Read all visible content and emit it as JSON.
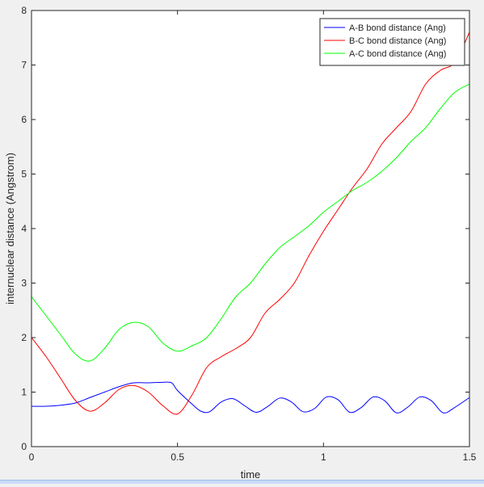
{
  "chart_data": {
    "type": "line",
    "title": "",
    "xlabel": "time",
    "ylabel": "internuclear distance (Angstrom)",
    "xlim": [
      0,
      1.5
    ],
    "ylim": [
      0,
      8
    ],
    "xticks": [
      0,
      0.5,
      1,
      1.5
    ],
    "xtick_labels": [
      "0",
      "0.5",
      "1",
      "1.5"
    ],
    "yticks": [
      0,
      1,
      2,
      3,
      4,
      5,
      6,
      7,
      8
    ],
    "ytick_labels": [
      "0",
      "1",
      "2",
      "3",
      "4",
      "5",
      "6",
      "7",
      "8"
    ],
    "grid": false,
    "legend_position": "top-right",
    "series": [
      {
        "name": "A-B bond distance (Ang)",
        "color": "#0000ff",
        "x": [
          0,
          0.05,
          0.1,
          0.15,
          0.2,
          0.25,
          0.3,
          0.35,
          0.4,
          0.45,
          0.48,
          0.5,
          0.55,
          0.58,
          0.61,
          0.65,
          0.69,
          0.73,
          0.77,
          0.81,
          0.85,
          0.89,
          0.93,
          0.97,
          1.01,
          1.05,
          1.09,
          1.13,
          1.17,
          1.21,
          1.25,
          1.29,
          1.33,
          1.37,
          1.41,
          1.45,
          1.5
        ],
        "y": [
          0.74,
          0.74,
          0.76,
          0.8,
          0.9,
          1.0,
          1.1,
          1.17,
          1.17,
          1.18,
          1.17,
          1.03,
          0.78,
          0.65,
          0.64,
          0.82,
          0.88,
          0.75,
          0.63,
          0.74,
          0.89,
          0.82,
          0.64,
          0.7,
          0.91,
          0.86,
          0.63,
          0.72,
          0.91,
          0.84,
          0.62,
          0.73,
          0.91,
          0.84,
          0.62,
          0.72,
          0.9
        ]
      },
      {
        "name": "B-C bond distance (Ang)",
        "color": "#ff0000",
        "x": [
          0,
          0.05,
          0.1,
          0.15,
          0.2,
          0.25,
          0.3,
          0.35,
          0.4,
          0.45,
          0.5,
          0.55,
          0.6,
          0.65,
          0.7,
          0.75,
          0.8,
          0.85,
          0.9,
          0.95,
          1.0,
          1.05,
          1.1,
          1.15,
          1.2,
          1.25,
          1.3,
          1.35,
          1.4,
          1.45,
          1.5
        ],
        "y": [
          2.0,
          1.65,
          1.25,
          0.85,
          0.65,
          0.8,
          1.05,
          1.12,
          1.0,
          0.75,
          0.6,
          0.95,
          1.45,
          1.65,
          1.8,
          2.0,
          2.45,
          2.7,
          3.0,
          3.5,
          3.95,
          4.35,
          4.75,
          5.1,
          5.55,
          5.85,
          6.15,
          6.65,
          6.9,
          7.05,
          7.6
        ]
      },
      {
        "name": "A-C bond distance (Ang)",
        "color": "#00ff00",
        "x": [
          0,
          0.05,
          0.1,
          0.15,
          0.2,
          0.25,
          0.3,
          0.35,
          0.4,
          0.45,
          0.5,
          0.55,
          0.6,
          0.65,
          0.7,
          0.75,
          0.8,
          0.85,
          0.9,
          0.95,
          1.0,
          1.05,
          1.1,
          1.15,
          1.2,
          1.25,
          1.3,
          1.35,
          1.4,
          1.45,
          1.5
        ],
        "y": [
          2.75,
          2.4,
          2.05,
          1.7,
          1.57,
          1.8,
          2.15,
          2.28,
          2.2,
          1.9,
          1.75,
          1.85,
          2.0,
          2.35,
          2.75,
          3.0,
          3.35,
          3.65,
          3.85,
          4.05,
          4.3,
          4.5,
          4.7,
          4.85,
          5.05,
          5.3,
          5.6,
          5.85,
          6.2,
          6.5,
          6.65
        ]
      }
    ]
  }
}
